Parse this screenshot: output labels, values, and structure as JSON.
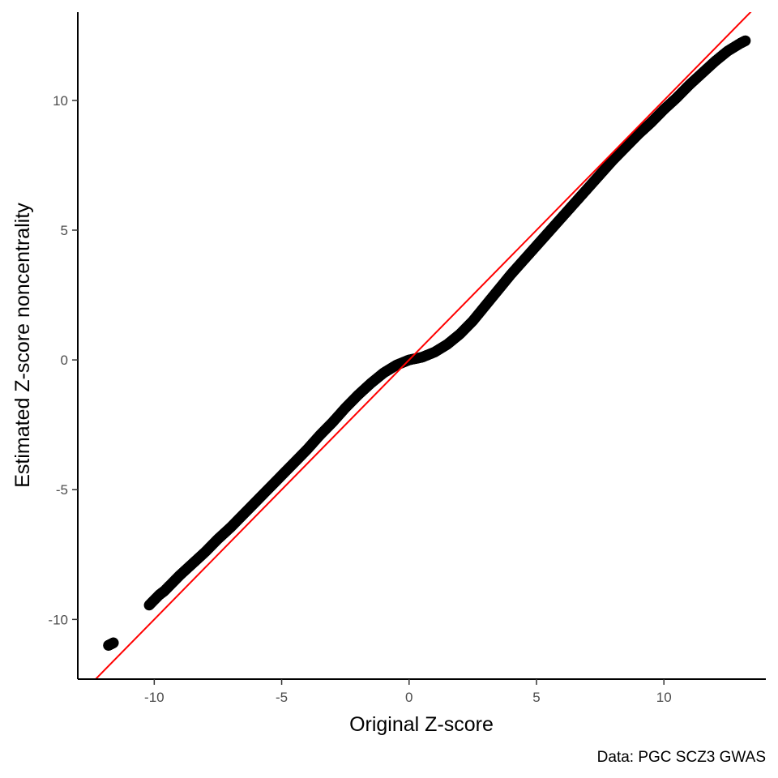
{
  "chart_data": {
    "type": "scatter",
    "title": "",
    "xlabel": "Original Z-score",
    "ylabel": "Estimated Z-score noncentrality",
    "caption": "Data: PGC SCZ3 GWAS",
    "xlim": [
      -13.0,
      14.0
    ],
    "ylim": [
      -12.3,
      13.4
    ],
    "x_ticks": [
      -10,
      -5,
      0,
      5,
      10
    ],
    "x_tick_labels": [
      "-10",
      "-5",
      "0",
      "5",
      "10"
    ],
    "y_ticks": [
      -10,
      -5,
      0,
      5,
      10
    ],
    "y_tick_labels": [
      "-10",
      "-5",
      "0",
      "5",
      "10"
    ],
    "grid": false,
    "legend": "none",
    "colors": {
      "points": "#000000",
      "reference_line": "#ff0000"
    },
    "reference_line": {
      "intercept": 0,
      "slope": 1
    },
    "points": [
      {
        "x": -11.8,
        "y": -11.0
      },
      {
        "x": -11.7,
        "y": -10.95
      },
      {
        "x": -11.6,
        "y": -10.9
      },
      {
        "x": -10.2,
        "y": -9.45
      },
      {
        "x": -9.8,
        "y": -9.05
      },
      {
        "x": -9.6,
        "y": -8.9
      },
      {
        "x": -9.4,
        "y": -8.7
      },
      {
        "x": -9.0,
        "y": -8.3
      },
      {
        "x": -8.5,
        "y": -7.85
      },
      {
        "x": -8.0,
        "y": -7.4
      },
      {
        "x": -7.5,
        "y": -6.9
      },
      {
        "x": -7.0,
        "y": -6.45
      },
      {
        "x": -6.5,
        "y": -5.95
      },
      {
        "x": -6.0,
        "y": -5.45
      },
      {
        "x": -5.5,
        "y": -4.95
      },
      {
        "x": -5.0,
        "y": -4.45
      },
      {
        "x": -4.5,
        "y": -3.95
      },
      {
        "x": -4.0,
        "y": -3.45
      },
      {
        "x": -3.5,
        "y": -2.9
      },
      {
        "x": -3.0,
        "y": -2.4
      },
      {
        "x": -2.5,
        "y": -1.85
      },
      {
        "x": -2.0,
        "y": -1.35
      },
      {
        "x": -1.5,
        "y": -0.9
      },
      {
        "x": -1.0,
        "y": -0.5
      },
      {
        "x": -0.5,
        "y": -0.2
      },
      {
        "x": 0.0,
        "y": 0.0
      },
      {
        "x": 0.5,
        "y": 0.1
      },
      {
        "x": 1.0,
        "y": 0.3
      },
      {
        "x": 1.5,
        "y": 0.6
      },
      {
        "x": 2.0,
        "y": 1.0
      },
      {
        "x": 2.5,
        "y": 1.5
      },
      {
        "x": 3.0,
        "y": 2.1
      },
      {
        "x": 3.5,
        "y": 2.7
      },
      {
        "x": 4.0,
        "y": 3.3
      },
      {
        "x": 4.5,
        "y": 3.85
      },
      {
        "x": 5.0,
        "y": 4.4
      },
      {
        "x": 5.5,
        "y": 4.95
      },
      {
        "x": 6.0,
        "y": 5.5
      },
      {
        "x": 6.5,
        "y": 6.05
      },
      {
        "x": 7.0,
        "y": 6.6
      },
      {
        "x": 7.5,
        "y": 7.15
      },
      {
        "x": 8.0,
        "y": 7.7
      },
      {
        "x": 8.5,
        "y": 8.2
      },
      {
        "x": 9.0,
        "y": 8.7
      },
      {
        "x": 9.5,
        "y": 9.15
      },
      {
        "x": 10.0,
        "y": 9.65
      },
      {
        "x": 10.5,
        "y": 10.1
      },
      {
        "x": 11.0,
        "y": 10.6
      },
      {
        "x": 11.5,
        "y": 11.05
      },
      {
        "x": 12.0,
        "y": 11.5
      },
      {
        "x": 12.5,
        "y": 11.9
      },
      {
        "x": 13.0,
        "y": 12.2
      },
      {
        "x": 13.2,
        "y": 12.3
      }
    ]
  }
}
